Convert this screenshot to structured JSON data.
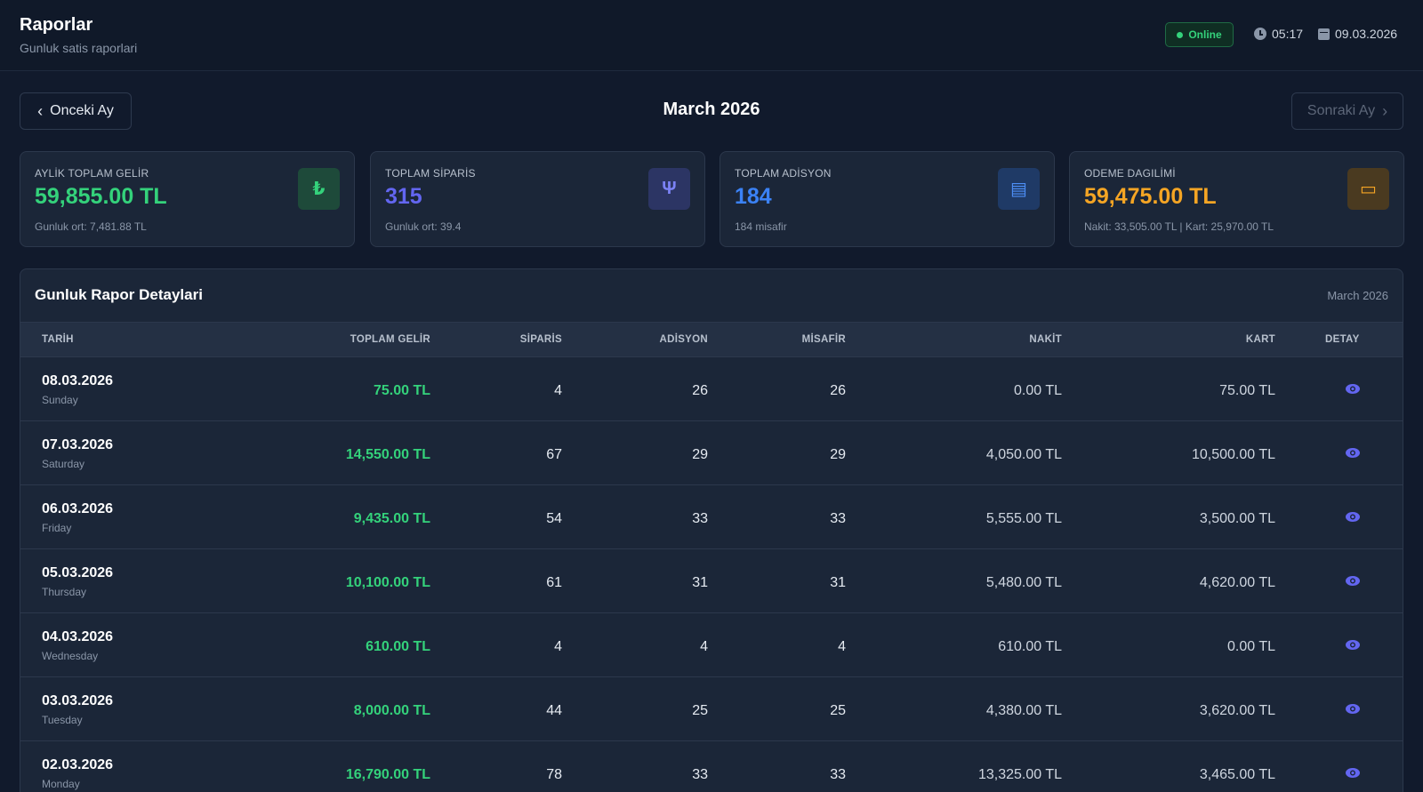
{
  "header": {
    "title": "Raporlar",
    "subtitle": "Gunluk satis raporlari",
    "status": "Online",
    "time": "05:17",
    "date": "09.03.2026"
  },
  "month_nav": {
    "prev_label": "Onceki Ay",
    "current": "March 2026",
    "next_label": "Sonraki Ay"
  },
  "kpis": [
    {
      "label": "AYLİK TOPLAM GELİR",
      "value": "59,855.00 TL",
      "sub": "Gunluk ort: 7,481.88 TL",
      "icon": "lira-icon",
      "glyph": "₺",
      "color": "#34d27b"
    },
    {
      "label": "TOPLAM SİPARİS",
      "value": "315",
      "sub": "Gunluk ort: 39.4",
      "icon": "utensils-icon",
      "glyph": "Ψ",
      "color": "#6366f1"
    },
    {
      "label": "TOPLAM ADİSYON",
      "value": "184",
      "sub": "184 misafir",
      "icon": "receipt-icon",
      "glyph": "▤",
      "color": "#3b82f6"
    },
    {
      "label": "ODEME DAGILİMİ",
      "value": "59,475.00 TL",
      "sub": "Nakit: 33,505.00 TL | Kart: 25,970.00 TL",
      "icon": "credit-card-icon",
      "glyph": "▭",
      "color": "#f5a524"
    }
  ],
  "table": {
    "title": "Gunluk Rapor Detaylari",
    "period": "March 2026",
    "columns": [
      "TARİH",
      "TOPLAM GELİR",
      "SİPARİS",
      "ADİSYON",
      "MİSAFİR",
      "NAKİT",
      "KART",
      "DETAY"
    ],
    "rows": [
      {
        "date": "08.03.2026",
        "day": "Sunday",
        "revenue": "75.00 TL",
        "orders": "4",
        "checks": "26",
        "guests": "26",
        "cash": "0.00 TL",
        "card": "75.00 TL"
      },
      {
        "date": "07.03.2026",
        "day": "Saturday",
        "revenue": "14,550.00 TL",
        "orders": "67",
        "checks": "29",
        "guests": "29",
        "cash": "4,050.00 TL",
        "card": "10,500.00 TL"
      },
      {
        "date": "06.03.2026",
        "day": "Friday",
        "revenue": "9,435.00 TL",
        "orders": "54",
        "checks": "33",
        "guests": "33",
        "cash": "5,555.00 TL",
        "card": "3,500.00 TL"
      },
      {
        "date": "05.03.2026",
        "day": "Thursday",
        "revenue": "10,100.00 TL",
        "orders": "61",
        "checks": "31",
        "guests": "31",
        "cash": "5,480.00 TL",
        "card": "4,620.00 TL"
      },
      {
        "date": "04.03.2026",
        "day": "Wednesday",
        "revenue": "610.00 TL",
        "orders": "4",
        "checks": "4",
        "guests": "4",
        "cash": "610.00 TL",
        "card": "0.00 TL"
      },
      {
        "date": "03.03.2026",
        "day": "Tuesday",
        "revenue": "8,000.00 TL",
        "orders": "44",
        "checks": "25",
        "guests": "25",
        "cash": "4,380.00 TL",
        "card": "3,620.00 TL"
      },
      {
        "date": "02.03.2026",
        "day": "Monday",
        "revenue": "16,790.00 TL",
        "orders": "78",
        "checks": "33",
        "guests": "33",
        "cash": "13,325.00 TL",
        "card": "3,465.00 TL"
      }
    ]
  },
  "colors": {
    "accent_green": "#34d27b",
    "accent_blue": "#3b82f6",
    "accent_indigo": "#6366f1",
    "accent_orange": "#f5a524"
  }
}
